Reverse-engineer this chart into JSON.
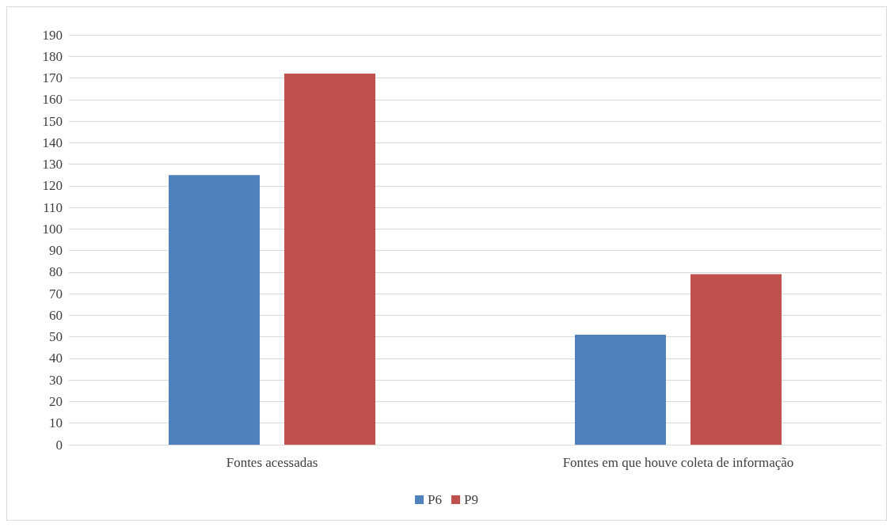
{
  "chart_data": {
    "type": "bar",
    "categories": [
      "Fontes acessadas",
      "Fontes em que houve coleta de informação"
    ],
    "series": [
      {
        "name": "P6",
        "color": "#4f81bd",
        "values": [
          125,
          51
        ]
      },
      {
        "name": "P9",
        "color": "#c0504d",
        "values": [
          172,
          79
        ]
      }
    ],
    "ylim": [
      0,
      190
    ],
    "yticks": [
      0,
      10,
      20,
      30,
      40,
      50,
      60,
      70,
      80,
      90,
      100,
      110,
      120,
      130,
      140,
      150,
      160,
      170,
      180,
      190
    ],
    "grid": "y",
    "legend": "bottom"
  }
}
